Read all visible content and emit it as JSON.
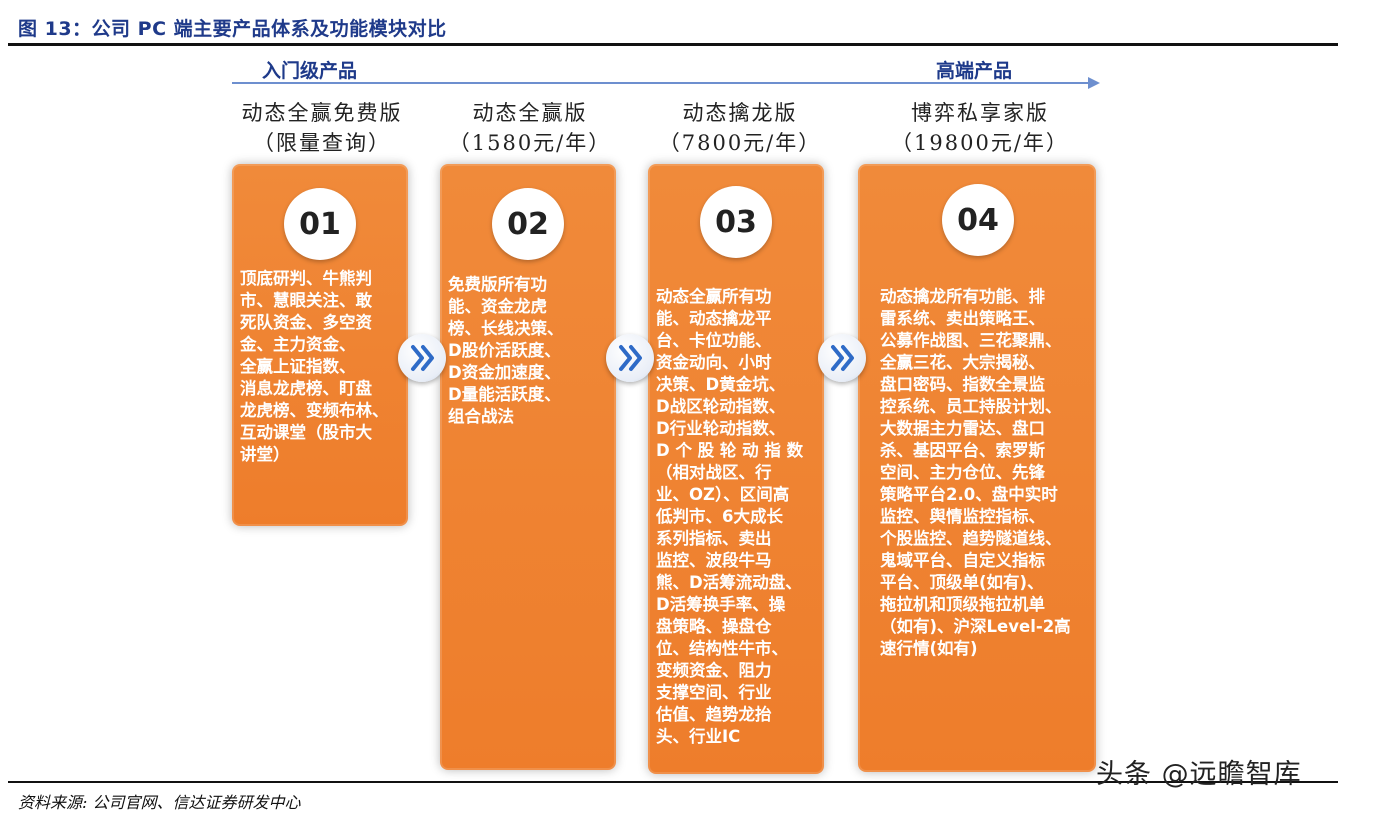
{
  "figure_title": "图 13：公司 PC 端主要产品体系及功能模块对比",
  "tiers": {
    "entry": "入门级产品",
    "high": "高端产品"
  },
  "products": [
    {
      "name": "动态全赢免费版",
      "price": "（限量查询）",
      "number": "01",
      "features": "顶底研判、牛熊判\n市、慧眼关注、敢\n死队资金、多空资\n金、主力资金、\n全赢上证指数、\n消息龙虎榜、盯盘\n龙虎榜、变频布林、\n互动课堂（股市大\n讲堂）"
    },
    {
      "name": "动态全赢版",
      "price": "（1580元/年）",
      "number": "02",
      "features": "免费版所有功\n能、资金龙虎\n榜、长线决策、\nD股价活跃度、\nD资金加速度、\nD量能活跃度、\n组合战法"
    },
    {
      "name": "动态擒龙版",
      "price": "（7800元/年）",
      "number": "03",
      "features": "动态全赢所有功\n能、动态擒龙平\n台、卡位功能、\n资金动向、小时\n决策、D黄金坑、\nD战区轮动指数、\nD行业轮动指数、\nD 个 股 轮 动 指 数\n（相对战区、行\n业、OZ）、区间高\n低判市、6大成长\n系列指标、卖出\n监控、波段牛马\n熊、D活筹流动盘、\nD活筹换手率、操\n盘策略、操盘仓\n位、结构性牛市、\n变频资金、阻力\n支撑空间、行业\n估值、趋势龙抬\n头、行业IC"
    },
    {
      "name": "博弈私享家版",
      "price": "（19800元/年）",
      "number": "04",
      "features": "动态擒龙所有功能、排\n雷系统、卖出策略王、\n公募作战图、三花聚鼎、\n全赢三花、大宗揭秘、\n盘口密码、指数全景监\n控系统、员工持股计划、\n大数据主力雷达、盘口\n杀、基因平台、索罗斯\n空间、主力仓位、先锋\n策略平台2.0、盘中实时\n监控、舆情监控指标、\n个股监控、趋势隧道线、\n鬼域平台、自定义指标\n平台、顶级单(如有)、\n拖拉机和顶级拖拉机单\n（如有)、沪深Level-2高\n速行情(如有)"
    }
  ],
  "source": "资料来源: 公司官网、信达证券研发中心",
  "watermark": "头条 @远瞻智库",
  "colors": {
    "card": "#ee7d2b",
    "arrow": "#6d8fcf",
    "title": "#1f3a8a"
  },
  "icons": {
    "next": "double-chevron-right-icon"
  }
}
